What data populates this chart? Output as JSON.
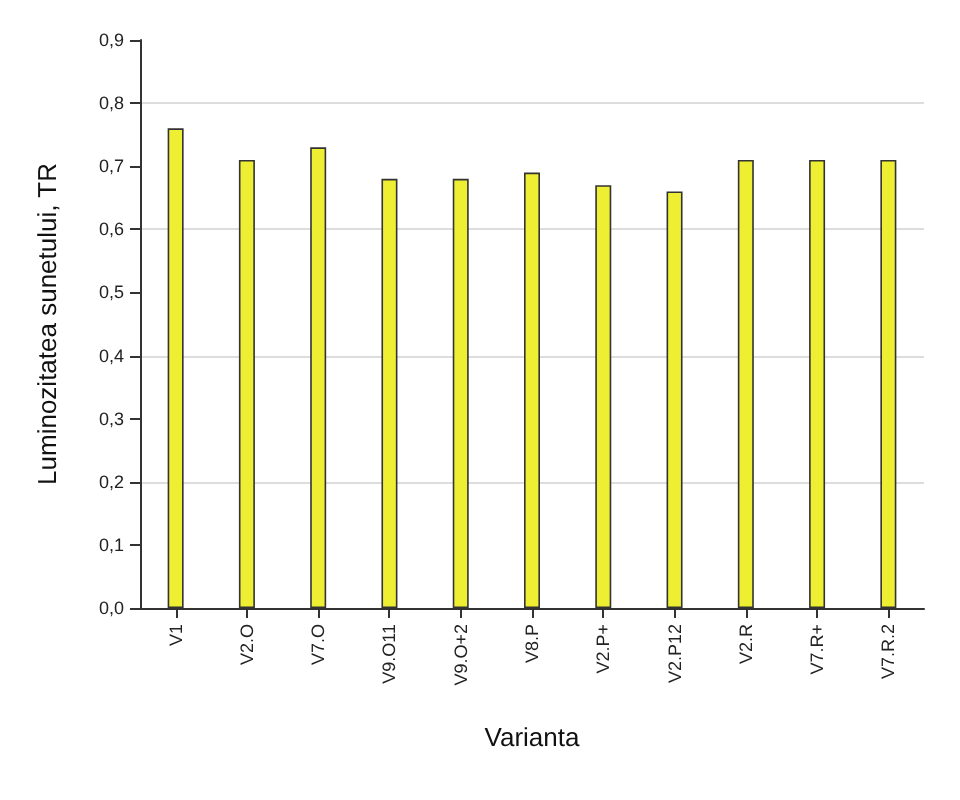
{
  "chart_data": {
    "type": "bar",
    "xlabel": "Varianta",
    "ylabel": "Luminozitatea sunetului, TR",
    "categories": [
      "V1",
      "V2.O",
      "V7.O",
      "V9.O11",
      "V9.O+2",
      "V8.P",
      "V2.P+",
      "V2.P12",
      "V2.R",
      "V7.R+",
      "V7.R.2"
    ],
    "values": [
      0.76,
      0.71,
      0.73,
      0.68,
      0.68,
      0.69,
      0.67,
      0.66,
      0.71,
      0.71,
      0.71
    ],
    "color": "#eeee33",
    "ylim": [
      0,
      0.9
    ],
    "yticks": [
      {
        "value": 0,
        "label": "0,0"
      },
      {
        "value": 0.1,
        "label": "0,1"
      },
      {
        "value": 0.2,
        "label": "0,2"
      },
      {
        "value": 0.3,
        "label": "0,3"
      },
      {
        "value": 0.4,
        "label": "0,4"
      },
      {
        "value": 0.5,
        "label": "0,5"
      },
      {
        "value": 0.6,
        "label": "0,6"
      },
      {
        "value": 0.7,
        "label": "0,7"
      },
      {
        "value": 0.8,
        "label": "0,8"
      },
      {
        "value": 0.9,
        "label": "0,9"
      }
    ],
    "grid": "y"
  }
}
